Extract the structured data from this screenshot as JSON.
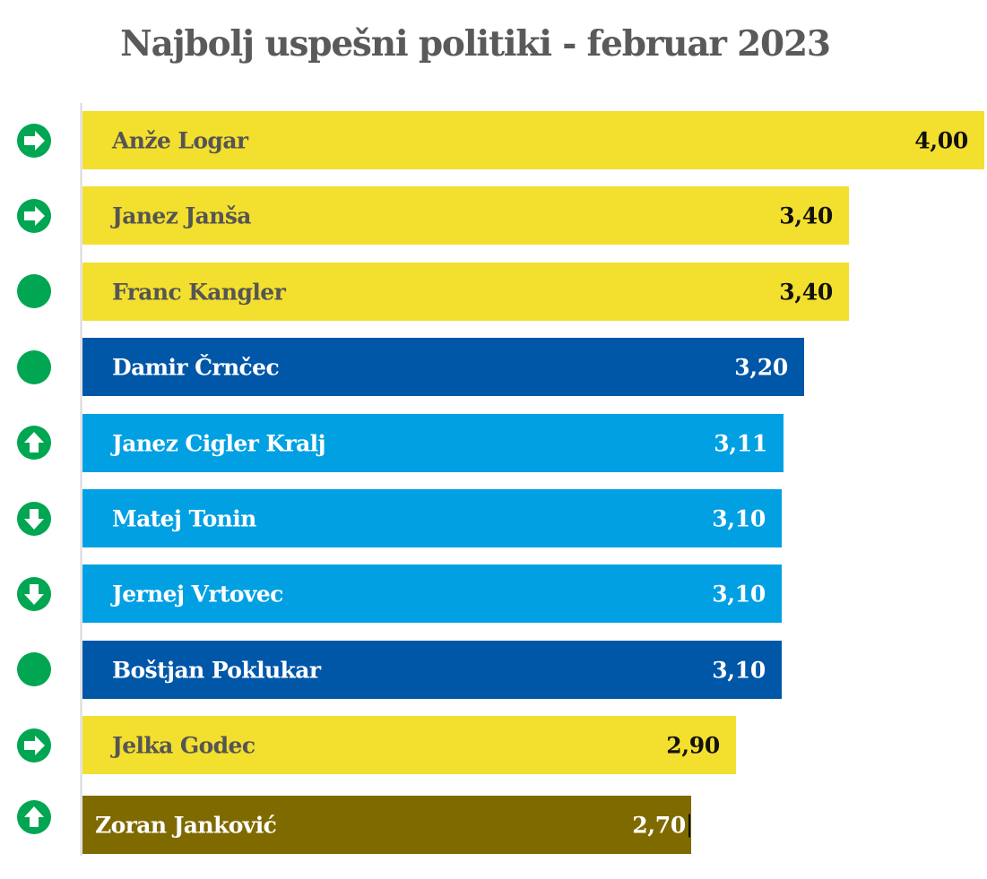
{
  "chart_data": {
    "type": "bar",
    "orientation": "horizontal",
    "title": "Najbolj uspešni politiki - februar 2023",
    "xlabel": "",
    "ylabel": "",
    "xlim": [
      0,
      4.0
    ],
    "grid": false,
    "legend": "none",
    "categories": [
      "Anže Logar",
      "Janez Janša",
      "Franc Kangler",
      "Damir Črnčec",
      "Janez Cigler Kralj",
      "Matej Tonin",
      "Jernej Vrtovec",
      "Boštjan Poklukar",
      "Jelka Godec",
      "Zoran Janković"
    ],
    "values": [
      4.0,
      3.4,
      3.4,
      3.2,
      3.11,
      3.1,
      3.1,
      3.1,
      2.9,
      2.7
    ],
    "value_labels": [
      "4,00",
      "3,40",
      "3,40",
      "3,20",
      "3,11",
      "3,10",
      "3,10",
      "3,10",
      "2,90",
      "2,70"
    ],
    "trends": [
      "same",
      "same",
      "new",
      "new",
      "up",
      "down",
      "down",
      "new",
      "same",
      "up"
    ],
    "trend_icons": {
      "same": "arrow-right-circle-icon",
      "up": "arrow-up-circle-icon",
      "down": "arrow-down-circle-icon",
      "new": "dot-circle-icon"
    },
    "bar_groups": [
      "yellow",
      "yellow",
      "yellow",
      "darkblue",
      "lightblue",
      "lightblue",
      "lightblue",
      "darkblue",
      "yellow",
      "olive"
    ]
  },
  "colors": {
    "yellow": "#f3df2d",
    "darkblue": "#0057a8",
    "lightblue": "#00a0e3",
    "olive": "#7f6a00",
    "trend_green": "#00a651",
    "title_text": "#5a5a5a",
    "dark_label_text": "#555555",
    "dark_value_text": "#111111",
    "light_text": "#ffffff",
    "axis_line": "#d9d9d9"
  }
}
